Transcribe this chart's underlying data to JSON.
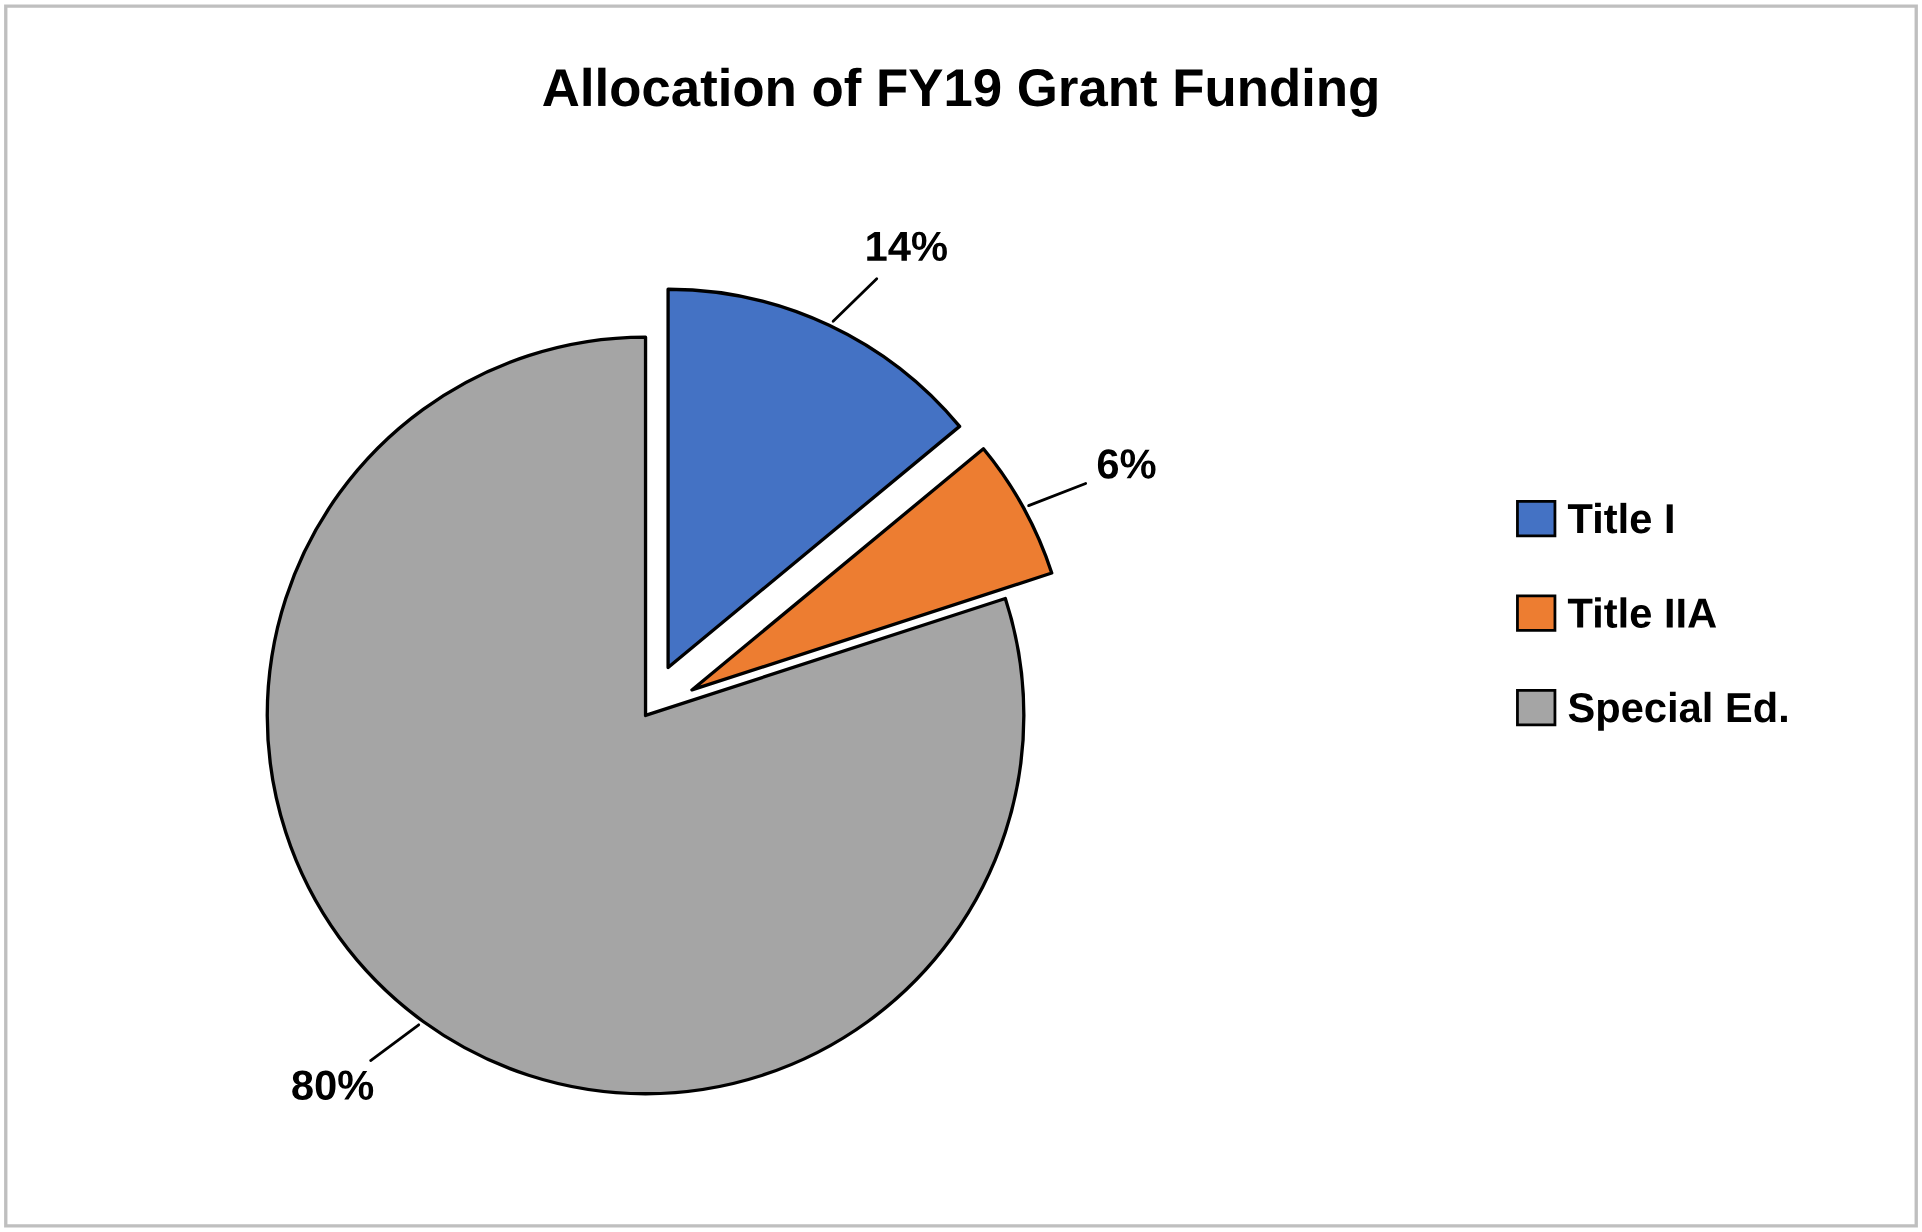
{
  "chart_data": {
    "type": "pie",
    "title": "Allocation of FY19 Grant Funding",
    "categories": [
      "Title I",
      "Title IIA",
      "Special Ed."
    ],
    "values": [
      14,
      6,
      80
    ],
    "value_labels": [
      "14%",
      "6%",
      "80%"
    ],
    "colors": [
      "#4472c4",
      "#ed7d31",
      "#a5a5a5"
    ],
    "legend": "right"
  }
}
